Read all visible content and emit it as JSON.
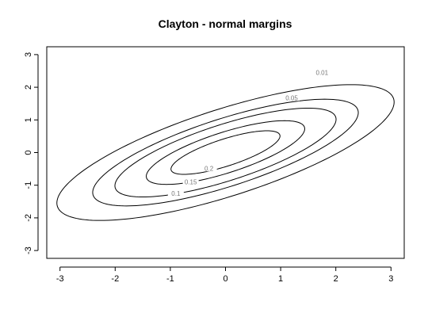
{
  "chart_data": {
    "type": "contour",
    "title": "Clayton - normal margins",
    "xlabel": "",
    "ylabel": "",
    "xlim": [
      -3.24,
      3.24
    ],
    "ylim": [
      -3.24,
      3.24
    ],
    "x_ticks": [
      -3,
      -2,
      -1,
      0,
      1,
      2,
      3
    ],
    "y_ticks": [
      -3,
      -2,
      -1,
      0,
      1,
      2,
      3
    ],
    "grid": false,
    "levels": [
      {
        "label": "0.01",
        "center": [
          0.0,
          0.0
        ],
        "semi_major": 3.49,
        "semi_minor": 1.22,
        "angle_deg": 31,
        "label_at": [
          1.75,
          2.45
        ]
      },
      {
        "label": "0.05",
        "center": [
          0.0,
          0.0
        ],
        "semi_major": 2.75,
        "semi_minor": 0.95,
        "angle_deg": 31,
        "label_at": [
          1.2,
          1.68
        ]
      },
      {
        "label": "0.1",
        "center": [
          0.0,
          0.0
        ],
        "semi_major": 2.29,
        "semi_minor": 0.79,
        "angle_deg": 31,
        "label_at": [
          -0.9,
          -1.25
        ]
      },
      {
        "label": "0.15",
        "center": [
          0.0,
          0.0
        ],
        "semi_major": 1.64,
        "semi_minor": 0.57,
        "angle_deg": 31,
        "label_at": [
          -0.63,
          -0.9
        ]
      },
      {
        "label": "0.2",
        "center": [
          0.0,
          0.0
        ],
        "semi_major": 1.13,
        "semi_minor": 0.38,
        "angle_deg": 31,
        "label_at": [
          -0.3,
          -0.48
        ]
      }
    ]
  }
}
